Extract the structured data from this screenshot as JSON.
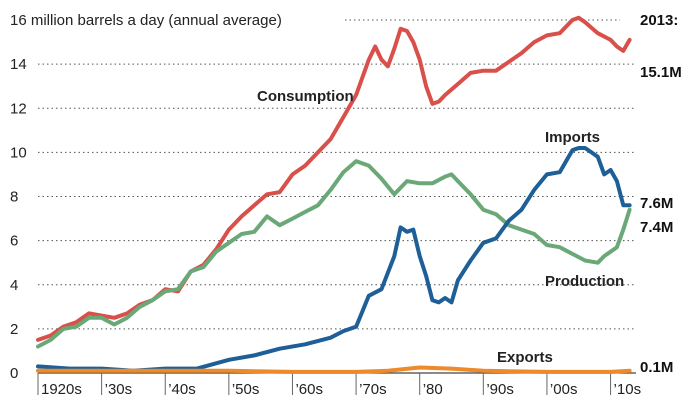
{
  "chart_data": {
    "type": "line",
    "title": "16 million barrels a day (annual average)",
    "y_unit": "million barrels a day",
    "ylim": [
      0,
      16
    ],
    "y_ticks": [
      0,
      2,
      4,
      6,
      8,
      10,
      12,
      14,
      16
    ],
    "y_tick_labels": [
      "0",
      "2",
      "4",
      "6",
      "8",
      "10",
      "12",
      "14",
      "16 million barrels a day (annual average)"
    ],
    "xlim": [
      1920,
      2014
    ],
    "x_ticks": [
      1920,
      1930,
      1940,
      1950,
      1960,
      1970,
      1980,
      1990,
      2000,
      2010
    ],
    "x_tick_labels": [
      "1920s",
      "’30s",
      "’40s",
      "’50s",
      "’60s",
      "’70s",
      "’80",
      "’90s",
      "’00s",
      "’10s"
    ],
    "grid": "horizontal-dotted",
    "end_year_label": "2013:",
    "series": [
      {
        "name": "Consumption",
        "color": "#d9504b",
        "end_label": "15.1M",
        "x": [
          1920,
          1922,
          1924,
          1926,
          1928,
          1930,
          1932,
          1934,
          1936,
          1938,
          1940,
          1942,
          1944,
          1946,
          1948,
          1950,
          1952,
          1954,
          1956,
          1958,
          1960,
          1962,
          1964,
          1966,
          1968,
          1970,
          1972,
          1973,
          1974,
          1975,
          1976,
          1977,
          1978,
          1979,
          1980,
          1981,
          1982,
          1983,
          1984,
          1986,
          1988,
          1990,
          1992,
          1994,
          1996,
          1998,
          2000,
          2002,
          2004,
          2005,
          2006,
          2008,
          2010,
          2011,
          2012,
          2013
        ],
        "y": [
          1.5,
          1.7,
          2.1,
          2.3,
          2.7,
          2.6,
          2.5,
          2.7,
          3.1,
          3.3,
          3.8,
          3.7,
          4.6,
          4.9,
          5.6,
          6.5,
          7.1,
          7.6,
          8.1,
          8.2,
          9.0,
          9.4,
          10.0,
          10.6,
          11.6,
          12.6,
          14.2,
          14.8,
          14.2,
          13.9,
          14.7,
          15.6,
          15.5,
          15.0,
          14.2,
          13.0,
          12.2,
          12.3,
          12.6,
          13.1,
          13.6,
          13.7,
          13.7,
          14.1,
          14.5,
          15.0,
          15.3,
          15.4,
          16.0,
          16.1,
          15.9,
          15.4,
          15.1,
          14.8,
          14.6,
          15.1
        ]
      },
      {
        "name": "Production",
        "color": "#6ba878",
        "end_label": "7.4M",
        "x": [
          1920,
          1922,
          1924,
          1926,
          1928,
          1930,
          1932,
          1934,
          1936,
          1938,
          1940,
          1942,
          1944,
          1946,
          1948,
          1950,
          1952,
          1954,
          1956,
          1958,
          1960,
          1962,
          1964,
          1966,
          1968,
          1970,
          1972,
          1974,
          1976,
          1978,
          1980,
          1982,
          1984,
          1985,
          1986,
          1988,
          1990,
          1992,
          1994,
          1996,
          1998,
          2000,
          2002,
          2004,
          2006,
          2008,
          2009,
          2010,
          2011,
          2012,
          2013
        ],
        "y": [
          1.2,
          1.5,
          2.0,
          2.1,
          2.5,
          2.5,
          2.2,
          2.5,
          3.0,
          3.3,
          3.7,
          3.8,
          4.6,
          4.8,
          5.5,
          5.9,
          6.3,
          6.4,
          7.1,
          6.7,
          7.0,
          7.3,
          7.6,
          8.3,
          9.1,
          9.6,
          9.4,
          8.8,
          8.1,
          8.7,
          8.6,
          8.6,
          8.9,
          9.0,
          8.7,
          8.1,
          7.4,
          7.2,
          6.7,
          6.5,
          6.3,
          5.8,
          5.7,
          5.4,
          5.1,
          5.0,
          5.3,
          5.5,
          5.7,
          6.5,
          7.4
        ]
      },
      {
        "name": "Imports",
        "color": "#1d5f96",
        "end_label": "7.6M",
        "x": [
          1920,
          1925,
          1930,
          1935,
          1940,
          1945,
          1950,
          1954,
          1958,
          1962,
          1966,
          1968,
          1970,
          1972,
          1974,
          1976,
          1977,
          1978,
          1979,
          1980,
          1981,
          1982,
          1983,
          1984,
          1985,
          1986,
          1988,
          1990,
          1992,
          1994,
          1996,
          1998,
          2000,
          2002,
          2004,
          2005,
          2006,
          2007,
          2008,
          2009,
          2010,
          2011,
          2012,
          2013
        ],
        "y": [
          0.3,
          0.2,
          0.2,
          0.1,
          0.2,
          0.2,
          0.6,
          0.8,
          1.1,
          1.3,
          1.6,
          1.9,
          2.1,
          3.5,
          3.8,
          5.3,
          6.6,
          6.4,
          6.5,
          5.3,
          4.4,
          3.3,
          3.2,
          3.4,
          3.2,
          4.2,
          5.1,
          5.9,
          6.1,
          6.9,
          7.4,
          8.3,
          9.0,
          9.1,
          10.1,
          10.2,
          10.2,
          10.0,
          9.8,
          9.0,
          9.2,
          8.7,
          7.6,
          7.6
        ]
      },
      {
        "name": "Exports",
        "color": "#ec8a2c",
        "end_label": "0.1M",
        "x": [
          1920,
          1930,
          1940,
          1950,
          1960,
          1970,
          1975,
          1980,
          1985,
          1990,
          2000,
          2010,
          2013
        ],
        "y": [
          0.1,
          0.1,
          0.1,
          0.1,
          0.05,
          0.05,
          0.1,
          0.25,
          0.2,
          0.1,
          0.05,
          0.05,
          0.1
        ]
      }
    ]
  }
}
